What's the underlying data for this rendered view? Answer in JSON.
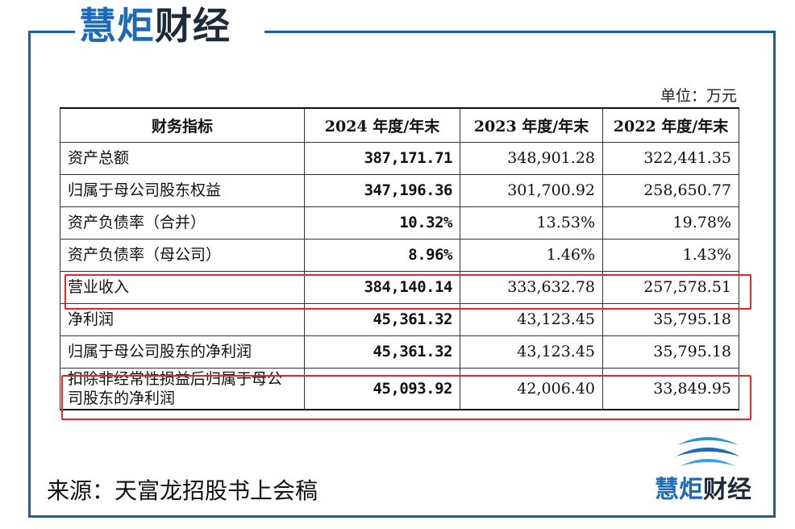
{
  "brand": {
    "part_blue": "慧炬",
    "part_dark": "财经"
  },
  "unit_label": "单位：万元",
  "table": {
    "headers": [
      "财务指标",
      "2024 年度/年末",
      "2023 年度/年末",
      "2022 年度/年末"
    ],
    "rows": [
      {
        "name": "资产总额",
        "v2024": "387,171.71",
        "v2023": "348,901.28",
        "v2022": "322,441.35"
      },
      {
        "name": "归属于母公司股东权益",
        "v2024": "347,196.36",
        "v2023": "301,700.92",
        "v2022": "258,650.77"
      },
      {
        "name": "资产负债率（合并）",
        "v2024": "10.32%",
        "v2023": "13.53%",
        "v2022": "19.78%"
      },
      {
        "name": "资产负债率（母公司）",
        "v2024": "8.96%",
        "v2023": "1.46%",
        "v2022": "1.43%"
      },
      {
        "name": "营业收入",
        "v2024": "384,140.14",
        "v2023": "333,632.78",
        "v2022": "257,578.51"
      },
      {
        "name": "净利润",
        "v2024": "45,361.32",
        "v2023": "43,123.45",
        "v2022": "35,795.18"
      },
      {
        "name": "归属于母公司股东的净利润",
        "v2024": "45,361.32",
        "v2023": "43,123.45",
        "v2022": "35,795.18"
      },
      {
        "name": "扣除非经常性损益后归属于母公司股东的净利润",
        "v2024": "45,093.92",
        "v2023": "42,006.40",
        "v2022": "33,849.95"
      }
    ]
  },
  "source_text": "来源：天富龙招股书上会稿",
  "colors": {
    "brand_blue": "#1d6ab8",
    "frame": "#1d5da8",
    "highlight": "#e3262b"
  }
}
